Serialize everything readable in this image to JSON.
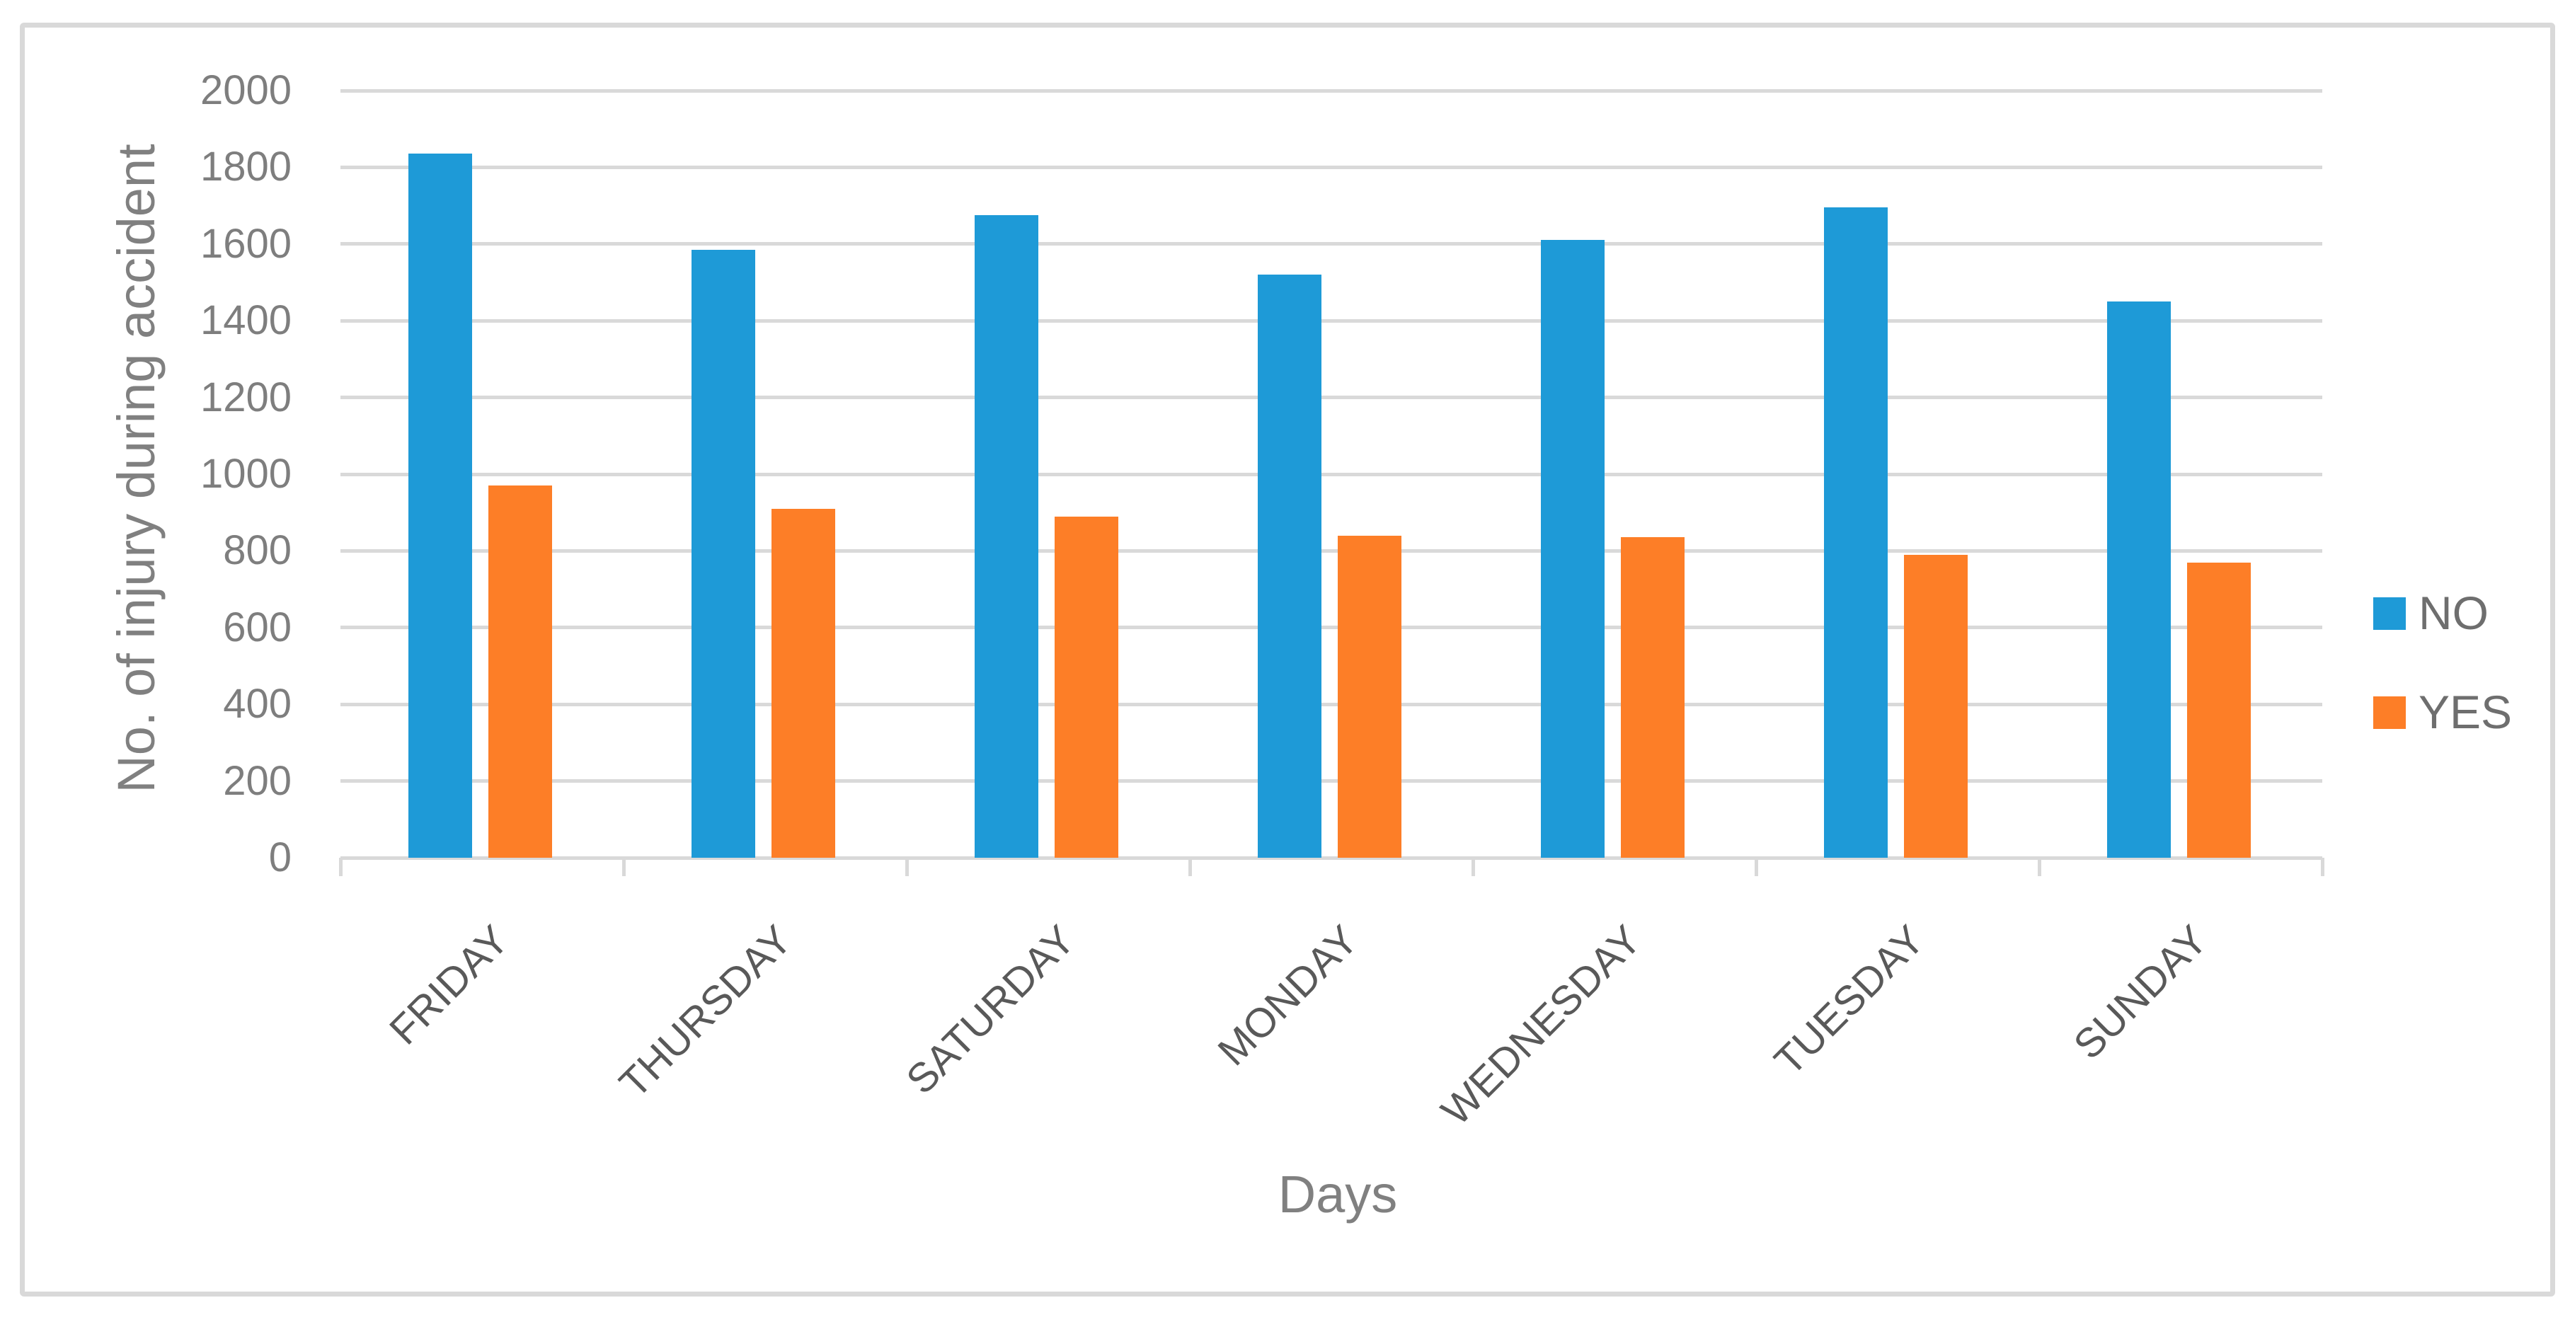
{
  "figure": {
    "border_color": "#d9d9d9",
    "background_color": "#ffffff"
  },
  "chart_data": {
    "type": "bar",
    "title": "",
    "xlabel": "Days",
    "ylabel": "No. of injury during accident",
    "categories": [
      "FRIDAY",
      "THURSDAY",
      "SATURDAY",
      "MONDAY",
      "WEDNESDAY",
      "TUESDAY",
      "SUNDAY"
    ],
    "series": [
      {
        "name": "NO",
        "color": "#1e9ad7",
        "values": [
          1835,
          1585,
          1675,
          1520,
          1610,
          1695,
          1450
        ]
      },
      {
        "name": "YES",
        "color": "#fd7e27",
        "values": [
          970,
          910,
          890,
          840,
          835,
          790,
          770
        ]
      }
    ],
    "ylim": [
      0,
      2000
    ],
    "ytick_step": 200,
    "ytick_labels": [
      "0",
      "200",
      "400",
      "600",
      "800",
      "1000",
      "1200",
      "1400",
      "1600",
      "1800",
      "2000"
    ],
    "grid": true,
    "gridline_color": "#d9d9d9",
    "legend_position": "right-middle",
    "legend_entries": [
      "NO",
      "YES"
    ]
  }
}
